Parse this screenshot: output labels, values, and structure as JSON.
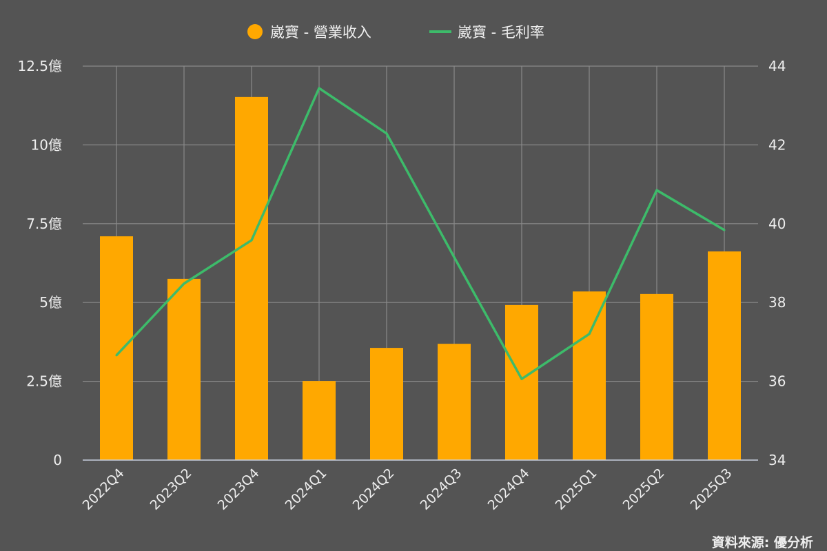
{
  "chart_data": {
    "type": "bar+line",
    "categories": [
      "2022Q4",
      "2023Q2",
      "2023Q4",
      "2024Q1",
      "2024Q2",
      "2024Q3",
      "2024Q4",
      "2025Q1",
      "2025Q2",
      "2025Q3"
    ],
    "series": [
      {
        "name": "崴寶 - 營業收入",
        "type": "bar",
        "axis": "left",
        "color": "#ffa800",
        "values": [
          7.1,
          5.75,
          11.52,
          2.51,
          3.56,
          3.69,
          4.92,
          5.35,
          5.27,
          6.62
        ]
      },
      {
        "name": "崴寶 - 毛利率",
        "type": "line",
        "axis": "right",
        "color": "#3dbb6a",
        "values": [
          36.66,
          38.48,
          39.58,
          43.44,
          42.29,
          39.15,
          36.06,
          37.2,
          40.85,
          39.84
        ]
      }
    ],
    "left_axis": {
      "ylim": [
        0,
        12.5
      ],
      "ticks": [
        0,
        2.5,
        5,
        7.5,
        10,
        12.5
      ],
      "tick_labels": [
        "0",
        "2.5億",
        "5億",
        "7.5億",
        "10億",
        "12.5億"
      ]
    },
    "right_axis": {
      "ylim": [
        34,
        44
      ],
      "ticks": [
        34,
        36,
        38,
        40,
        42,
        44
      ],
      "tick_labels": [
        "34",
        "36",
        "38",
        "40",
        "42",
        "44"
      ]
    },
    "grid": true,
    "legend_position": "top",
    "source": "資料來源: 優分析"
  }
}
